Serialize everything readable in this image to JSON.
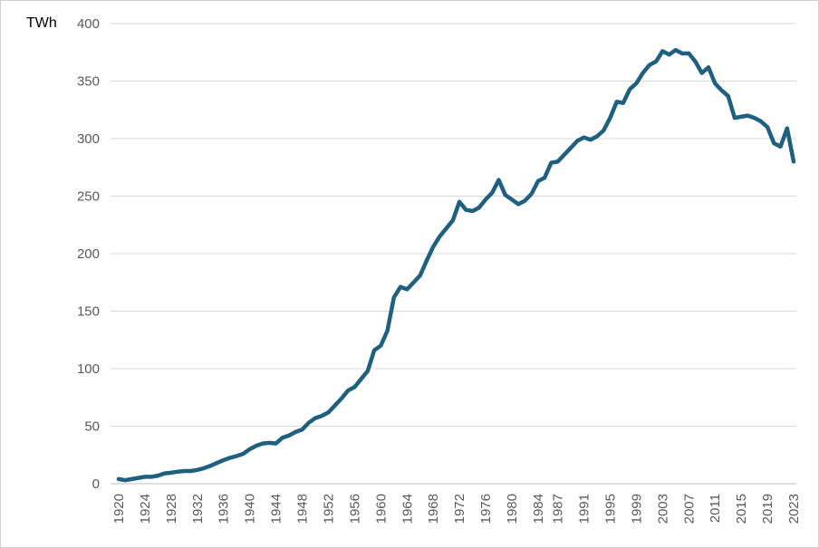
{
  "chart_data": {
    "type": "line",
    "title": "",
    "xlabel": "",
    "ylabel": "TWh",
    "ylim": [
      0,
      400
    ],
    "yticks": [
      0,
      50,
      100,
      150,
      200,
      250,
      300,
      350,
      400
    ],
    "xlim": [
      1920,
      2023
    ],
    "xticks": [
      1920,
      1924,
      1928,
      1932,
      1936,
      1940,
      1944,
      1948,
      1952,
      1956,
      1960,
      1964,
      1968,
      1972,
      1976,
      1980,
      1984,
      1987,
      1991,
      1995,
      1999,
      2003,
      2007,
      2011,
      2015,
      2019,
      2023
    ],
    "grid": true,
    "legend": "none",
    "series_color": "#1f5f7f",
    "series": [
      {
        "name": "",
        "x": [
          1920,
          1921,
          1922,
          1923,
          1924,
          1925,
          1926,
          1927,
          1928,
          1929,
          1930,
          1931,
          1932,
          1933,
          1934,
          1935,
          1936,
          1937,
          1938,
          1939,
          1940,
          1941,
          1942,
          1943,
          1944,
          1945,
          1946,
          1947,
          1948,
          1949,
          1950,
          1951,
          1952,
          1953,
          1954,
          1955,
          1956,
          1957,
          1958,
          1959,
          1960,
          1961,
          1962,
          1963,
          1964,
          1965,
          1966,
          1967,
          1968,
          1969,
          1970,
          1971,
          1972,
          1973,
          1974,
          1975,
          1976,
          1977,
          1978,
          1979,
          1980,
          1981,
          1982,
          1983,
          1984,
          1985,
          1986,
          1987,
          1988,
          1989,
          1990,
          1991,
          1992,
          1993,
          1994,
          1995,
          1996,
          1997,
          1998,
          1999,
          2000,
          2001,
          2002,
          2003,
          2004,
          2005,
          2006,
          2007,
          2008,
          2009,
          2010,
          2011,
          2012,
          2013,
          2014,
          2015,
          2016,
          2017,
          2018,
          2019,
          2020,
          2021,
          2022,
          2023
        ],
        "values": [
          4,
          3,
          4,
          5,
          6,
          6,
          7,
          9,
          9.5,
          10.5,
          11,
          11,
          12,
          13.5,
          15.5,
          18,
          20.5,
          22.5,
          24,
          26,
          30,
          33,
          35,
          35.5,
          35,
          40,
          42,
          45,
          47,
          53,
          57,
          59,
          62,
          68,
          74,
          81,
          84,
          91,
          98,
          116,
          120,
          133,
          162,
          171,
          169,
          175,
          181,
          194,
          206,
          215,
          222,
          229,
          245,
          238,
          237,
          240,
          247,
          253,
          264,
          251,
          247,
          243,
          246,
          252,
          263,
          266,
          279,
          280,
          286,
          292,
          298,
          301,
          299,
          302,
          307,
          318,
          332,
          331,
          343,
          348,
          357,
          364,
          367,
          376,
          373,
          377,
          374,
          374,
          367,
          357,
          362,
          348,
          342,
          337,
          318,
          319,
          320,
          318,
          315,
          310,
          296,
          293,
          309,
          280
        ]
      }
    ]
  }
}
